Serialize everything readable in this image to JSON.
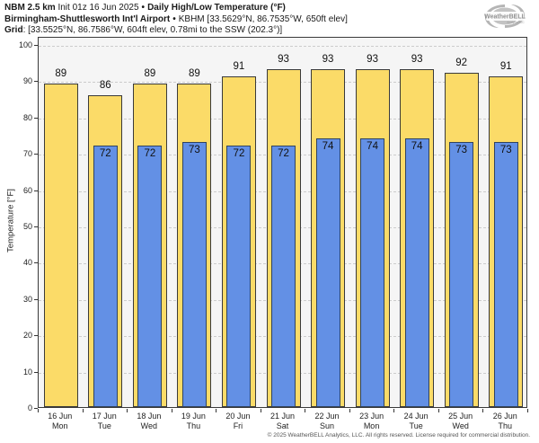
{
  "header": {
    "model": "NBM 2.5 km",
    "init": "Init 01z 16 Jun 2025",
    "sep1": "•",
    "product": "Daily High/Low Temperature (°F)",
    "station": "Birmingham-Shuttlesworth Int'l Airport",
    "sep2": "•",
    "station_meta": "KBHM [33.5629°N, 86.7535°W, 650ft elev]",
    "grid_label": "Grid",
    "grid_value": ": [33.5525°N, 86.7586°W, 604ft elev, 0.78mi to the SSW (202.3°)]"
  },
  "logo": {
    "text": "WeatherBELL",
    "subtext": "Analytics LLC"
  },
  "chart_data": {
    "type": "bar",
    "title": "NBM 2.5 km Init 01z 16 Jun 2025 • Daily High/Low Temperature (°F)",
    "subtitle": "Birmingham-Shuttlesworth Int'l Airport • KBHM [33.5629°N, 86.7535°W, 650ft elev]",
    "categories": [
      "16 Jun",
      "17 Jun",
      "18 Jun",
      "19 Jun",
      "20 Jun",
      "21 Jun",
      "22 Jun",
      "23 Jun",
      "24 Jun",
      "25 Jun",
      "26 Jun"
    ],
    "weekdays": [
      "Mon",
      "Tue",
      "Wed",
      "Thu",
      "Fri",
      "Sat",
      "Sun",
      "Mon",
      "Tue",
      "Wed",
      "Thu"
    ],
    "series": [
      {
        "name": "High",
        "color": "#fbdb68",
        "values": [
          89,
          86,
          89,
          89,
          91,
          93,
          93,
          93,
          93,
          92,
          91
        ]
      },
      {
        "name": "Low",
        "color": "#6390e5",
        "values": [
          null,
          72,
          72,
          73,
          72,
          72,
          74,
          74,
          74,
          73,
          73
        ]
      }
    ],
    "xlabel": "",
    "ylabel": "Temperature [°F]",
    "ylim": [
      0,
      100
    ],
    "yticks": [
      0,
      10,
      20,
      30,
      40,
      50,
      60,
      70,
      80,
      90,
      100
    ],
    "grid": "horizontal-dashed",
    "legend_position": "none",
    "plot_background": "#f5f5f5",
    "bar_value_labels": true
  },
  "footer": {
    "copyright": "© 2025 WeatherBELL Analytics, LLC. All rights reserved. License required for commercial distribution."
  }
}
